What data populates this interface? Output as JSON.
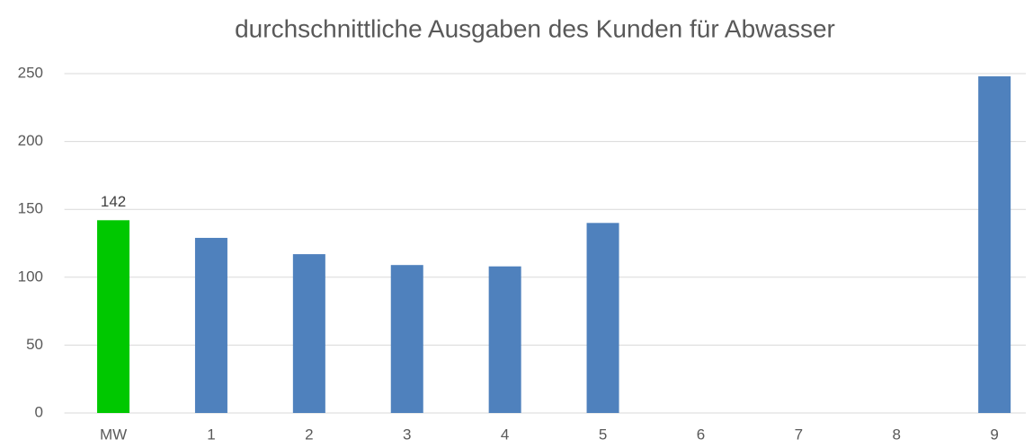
{
  "chart_data": {
    "type": "bar",
    "title": "durchschnittliche Ausgaben des Kunden für Abwasser",
    "categories": [
      "MW",
      "1",
      "2",
      "3",
      "4",
      "5",
      "6",
      "7",
      "8",
      "9"
    ],
    "values": [
      142,
      129,
      117,
      109,
      108,
      140,
      null,
      null,
      null,
      248
    ],
    "value_labels": [
      "142",
      null,
      null,
      null,
      null,
      null,
      null,
      null,
      null,
      null
    ],
    "colors": [
      "#00c800",
      "#4f81bd",
      "#4f81bd",
      "#4f81bd",
      "#4f81bd",
      "#4f81bd",
      "#4f81bd",
      "#4f81bd",
      "#4f81bd",
      "#4f81bd"
    ],
    "ylim": [
      0,
      250
    ],
    "yticks": [
      0,
      50,
      100,
      150,
      200,
      250
    ],
    "grid": true
  }
}
